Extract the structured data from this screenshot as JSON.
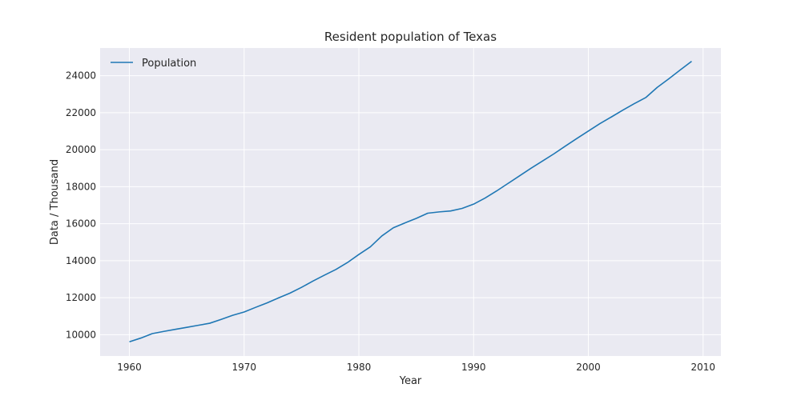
{
  "chart_data": {
    "type": "line",
    "title": "Resident population of Texas",
    "xlabel": "Year",
    "ylabel": "Data / Thousand",
    "xlim": [
      1957.45,
      2011.55
    ],
    "ylim": [
      8850,
      25500
    ],
    "x_ticks": [
      1960,
      1970,
      1980,
      1990,
      2000,
      2010
    ],
    "y_ticks": [
      10000,
      12000,
      14000,
      16000,
      18000,
      20000,
      22000,
      24000
    ],
    "grid": true,
    "legend_position": "top-left",
    "background_color": "#eaeaf2",
    "grid_color": "#ffffff",
    "series": [
      {
        "name": "Population",
        "color": "#1f77b4",
        "x": [
          1960,
          1961,
          1962,
          1963,
          1964,
          1965,
          1966,
          1967,
          1968,
          1969,
          1970,
          1971,
          1972,
          1973,
          1974,
          1975,
          1976,
          1977,
          1978,
          1979,
          1980,
          1981,
          1982,
          1983,
          1984,
          1985,
          1986,
          1987,
          1988,
          1989,
          1990,
          1991,
          1992,
          1993,
          1994,
          1995,
          1996,
          1997,
          1998,
          1999,
          2000,
          2001,
          2002,
          2003,
          2004,
          2005,
          2006,
          2007,
          2008,
          2009
        ],
        "y": [
          9620,
          9820,
          10060,
          10180,
          10290,
          10400,
          10510,
          10620,
          10830,
          11050,
          11230,
          11480,
          11720,
          11990,
          12250,
          12560,
          12900,
          13220,
          13530,
          13900,
          14340,
          14750,
          15340,
          15780,
          16040,
          16290,
          16570,
          16640,
          16690,
          16830,
          17060,
          17390,
          17770,
          18180,
          18590,
          19000,
          19390,
          19780,
          20200,
          20610,
          21010,
          21410,
          21770,
          22140,
          22490,
          22820,
          23370,
          23830,
          24310,
          24780
        ]
      }
    ]
  }
}
